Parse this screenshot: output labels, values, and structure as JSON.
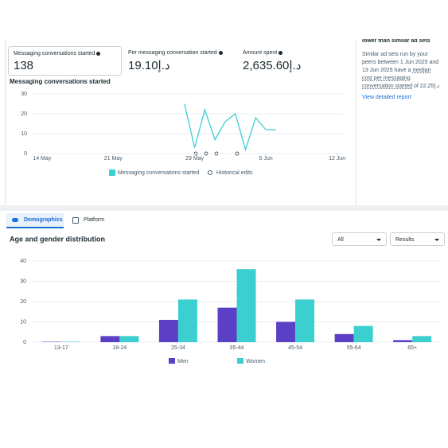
{
  "metrics": [
    {
      "label": "Messaging conversations started",
      "value": 138
    },
    {
      "label": "Per messaging conversation started",
      "value": "19.10د.إ"
    },
    {
      "label": "Amount spent",
      "value": "2,635.60د.إ"
    }
  ],
  "benchmark": {
    "heading": "lower than similar ad sets",
    "text": "Similar ad sets run by your peers between 1 Jun 2025 and 13 Jun 2025 have a",
    "underlined": "median cost per messaging conversation started",
    "tail": "of 22.25د.إ",
    "link": "View detailed report"
  },
  "tabs": [
    "Demographics",
    "Platform"
  ],
  "filters": [
    "All",
    "Results"
  ],
  "chart_data": [
    {
      "type": "line",
      "title": "Messaging conversations started",
      "x": [
        14,
        15,
        16,
        17,
        18,
        19,
        20,
        21,
        22,
        23
      ],
      "series": [
        {
          "name": "Messaging conversations started",
          "color": "#3ccfcf",
          "values": [
            25,
            3,
            22,
            7,
            16,
            20,
            2,
            18,
            12,
            12
          ]
        }
      ],
      "xlim": [
        -1,
        29.5
      ],
      "xticks": [
        {
          "value": 0,
          "label": "14 May"
        },
        {
          "value": 7,
          "label": "21 May"
        },
        {
          "value": 15,
          "label": "29 May"
        },
        {
          "value": 22,
          "label": "5 Jun"
        },
        {
          "value": 29,
          "label": "12 Jun"
        }
      ],
      "ylim": [
        0,
        30
      ],
      "yticks": [
        0,
        10,
        20,
        30
      ],
      "grid": true,
      "annotation_legend": "Historical edits"
    },
    {
      "type": "bar",
      "title": "Age and gender distribution",
      "categories": [
        "13-17",
        "18-24",
        "25-34",
        "35-44",
        "45-54",
        "55-64",
        "65+"
      ],
      "series": [
        {
          "name": "Men",
          "color": "#5b3fc4",
          "values": [
            0.2,
            3,
            11,
            17,
            10,
            4,
            1
          ]
        },
        {
          "name": "Women",
          "color": "#3ccfcf",
          "values": [
            0.2,
            3,
            21,
            36,
            21,
            8,
            3
          ]
        }
      ],
      "ylim": [
        0,
        40
      ],
      "yticks": [
        0,
        10,
        20,
        30,
        40
      ],
      "grid": true
    }
  ]
}
